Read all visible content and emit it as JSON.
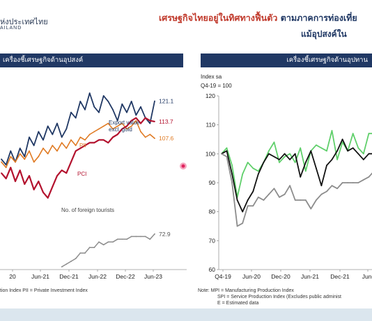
{
  "header": {
    "logo_text": "ห่งประเทศไทย",
    "logo_sub": "AILAND",
    "title_main": "เศรษฐกิจไทยอยู่ในทิศทางฟื้นตัว",
    "title_rest": " ตามภาคการท่องเที่ย",
    "title_line2": "แม้อุปสงค์ใน"
  },
  "left_panel": {
    "title": "เครื่องชี้เศรษฐกิจด้านอุปสงค์",
    "notes": [
      "tion Index   PII = Private Investment Index"
    ]
  },
  "right_panel": {
    "title": "เครื่องชี้เศรษฐกิจด้านอุปทาน",
    "notes": [
      "Note: MPI = Manufacturing Production Index",
      "SPI = Service Production Index (Excludes public administ",
      "E = Estimated data"
    ]
  },
  "colors": {
    "navy": "#203864",
    "orange": "#e07b24",
    "crimson": "#b3122e",
    "gray": "#8c8c8c",
    "green": "#5fcf6a",
    "black": "#111111",
    "red_dot": "#e0245e"
  },
  "chart_data": [
    {
      "type": "line",
      "x_ticks": [
        "20",
        "Jun-21",
        "Dec-21",
        "Jun-22",
        "Dec-22",
        "Jun-23"
      ],
      "ylim": [
        60,
        125
      ],
      "series": [
        {
          "name": "Export value excl. gold",
          "color": "navy",
          "end_label": "121.1",
          "values": [
            100,
            98,
            103,
            99,
            104,
            101,
            108,
            105,
            110,
            107,
            112,
            109,
            113,
            108,
            111,
            117,
            115,
            121,
            118,
            124,
            119,
            117,
            123,
            121,
            118,
            114,
            120,
            117,
            121,
            116,
            119,
            115,
            113,
            121.1
          ]
        },
        {
          "name": "PII",
          "color": "orange",
          "end_label": "107.6",
          "values": [
            99,
            97,
            101,
            99,
            102,
            100,
            103,
            99,
            101,
            104,
            102,
            105,
            103,
            106,
            104,
            107,
            105,
            108,
            107,
            109,
            110,
            111,
            112,
            113,
            111,
            112,
            113,
            111,
            112,
            114,
            110,
            108,
            109,
            107.6
          ]
        },
        {
          "name": "PCI",
          "color": "crimson",
          "end_label": "113.7",
          "values": [
            95,
            93,
            97,
            92,
            96,
            91,
            94,
            89,
            92,
            88,
            86,
            90,
            94,
            96,
            95,
            99,
            103,
            104,
            105,
            106,
            106,
            107,
            107,
            106,
            108,
            109,
            111,
            112,
            114,
            115,
            113,
            115,
            114,
            113.7
          ]
        },
        {
          "name": "No. of foreign tourists",
          "color": "gray",
          "end_label": "72.9",
          "values": [
            null,
            null,
            null,
            null,
            null,
            null,
            null,
            null,
            null,
            null,
            null,
            null,
            null,
            61,
            62,
            63,
            64,
            66,
            66,
            68,
            68,
            70,
            69,
            70,
            70,
            71,
            71,
            71,
            72,
            72,
            72,
            72,
            71,
            72.9
          ]
        }
      ]
    },
    {
      "type": "line",
      "ylabel": "Index sa",
      "ybase_note": "Q4-19 = 100",
      "x_ticks": [
        "Q4-19",
        "Jun-20",
        "Dec-20",
        "Jun-21",
        "Dec-21",
        "Jun-"
      ],
      "y_ticks": [
        60,
        70,
        80,
        90,
        100,
        110,
        120
      ],
      "ylim": [
        60,
        120
      ],
      "series": [
        {
          "name": "",
          "color": "green",
          "values": [
            100,
            102,
            96,
            85,
            93,
            97,
            95,
            94,
            97,
            101,
            104,
            97,
            99,
            100,
            97,
            102,
            94,
            101,
            103,
            102,
            101,
            108,
            98,
            104,
            101,
            107,
            102,
            100,
            107,
            107,
            107,
            107
          ]
        },
        {
          "name": "",
          "color": "black",
          "values": [
            100,
            101,
            93,
            84,
            80,
            84,
            87,
            93,
            97,
            100,
            99,
            98,
            100,
            98,
            100,
            92,
            97,
            101,
            95,
            89,
            96,
            98,
            101,
            105,
            101,
            102,
            100,
            98,
            100,
            100,
            101,
            101
          ]
        },
        {
          "name": "",
          "color": "gray",
          "values": [
            100,
            99,
            90,
            75,
            76,
            82,
            82,
            85,
            84,
            86,
            88,
            85,
            86,
            89,
            84,
            84,
            84,
            81,
            84,
            86,
            87,
            89,
            88,
            90,
            90,
            90,
            90,
            91,
            92,
            94,
            93,
            94
          ]
        }
      ]
    }
  ]
}
